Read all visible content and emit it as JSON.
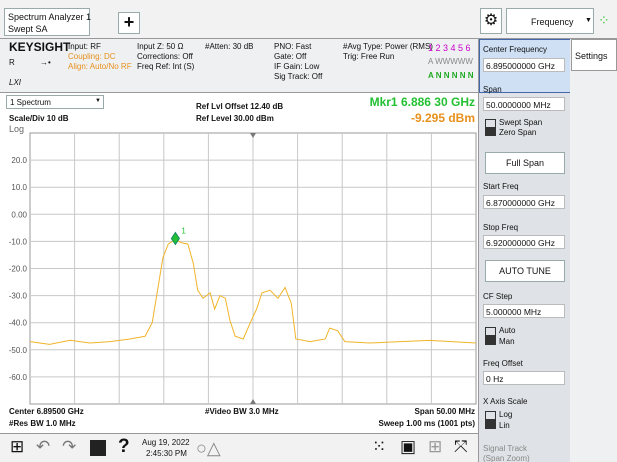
{
  "title_bar": {
    "app": "Spectrum Analyzer 1",
    "mode": "Swept SA",
    "menu": "Frequency"
  },
  "status": {
    "brand": "KEYSIGHT",
    "r": "R",
    "lxi": "LXI",
    "input": "Input: RF",
    "coupling": "Coupling: DC",
    "align": "Align: Auto/No RF",
    "input_z": "Input Z: 50 Ω",
    "corrections": "Corrections: Off",
    "freq_ref": "Freq Ref: Int (S)",
    "atten": "#Atten: 30 dB",
    "pno": "PNO: Fast",
    "gate": "Gate: Off",
    "if_gain": "IF Gain: Low",
    "sig_track": "Sig Track: Off",
    "avg_type": "#Avg Type: Power (RMS)",
    "trig": "Trig: Free Run",
    "traces": "1 2 3 4 5 6",
    "trace_type": "A WWWWW",
    "trace_det": "A N N N N N"
  },
  "plot": {
    "window": "1 Spectrum",
    "scale": "Scale/Div 10 dB",
    "log": "Log",
    "ref_offset": "Ref Lvl Offset 12.40 dB",
    "ref_level": "Ref Level 30.00 dBm",
    "marker_freq": "Mkr1  6.886 30 GHz",
    "marker_amp": "-9.295 dBm",
    "center": "Center 6.89500 GHz",
    "rbw": "#Res BW 1.0 MHz",
    "vbw": "#Video BW 3.0 MHz",
    "span": "Span 50.00 MHz",
    "sweep": "Sweep 1.00 ms (1001 pts)"
  },
  "chart_data": {
    "type": "line",
    "x": [
      6.87,
      6.8722,
      6.8745,
      6.8767,
      6.879,
      6.8812,
      6.8829,
      6.8837,
      6.8843,
      6.8849,
      6.8855,
      6.8863,
      6.887,
      6.8877,
      6.8883,
      6.8888,
      6.8894,
      6.8902,
      6.8907,
      6.8913,
      6.8919,
      6.8924,
      6.893,
      6.8939,
      6.8947,
      6.8954,
      6.896,
      6.8969,
      6.8978,
      6.8986,
      6.8993,
      6.8998,
      6.9014,
      6.9031,
      6.9036,
      6.9045,
      6.9053,
      6.9081,
      6.9115,
      6.9148,
      6.92
    ],
    "series": [
      {
        "color": "#f0b429",
        "values": [
          -47,
          -48,
          -46.5,
          -47.5,
          -47,
          -46,
          -45,
          -40,
          -28,
          -16,
          -11,
          -9.3,
          -10.5,
          -11,
          -18,
          -28,
          -31,
          -29,
          -35,
          -30,
          -31,
          -39,
          -45,
          -46,
          -40,
          -35,
          -29,
          -28,
          -31,
          -27,
          -33,
          -46,
          -47,
          -46,
          -42,
          -43,
          -47,
          -47.5,
          -47,
          -46.5,
          -47.5
        ]
      }
    ],
    "xlim": [
      6.87,
      6.92
    ],
    "ylim": [
      -70,
      30
    ],
    "yticks": [
      {
        "value": 20,
        "label": "20.0"
      },
      {
        "value": 10,
        "label": "10.0"
      },
      {
        "value": 0,
        "label": "0.00"
      },
      {
        "value": -10,
        "label": "-10.0"
      },
      {
        "value": -20,
        "label": "-20.0"
      },
      {
        "value": -30,
        "label": "-30.0"
      },
      {
        "value": -40,
        "label": "-40.0"
      },
      {
        "value": -50,
        "label": "-50.0"
      },
      {
        "value": -60,
        "label": "-60.0"
      }
    ],
    "grid": true,
    "marker": {
      "label": "1",
      "x": 6.8863,
      "y": -9.295,
      "color": "#22c032"
    }
  },
  "panel": {
    "tab": "Settings",
    "center_freq": "Center Frequency",
    "center_val": "6.895000000 GHz",
    "span": "Span",
    "span_val": "50.0000000 MHz",
    "swept_span": "Swept Span",
    "zero_span": "Zero Span",
    "full_span": "Full Span",
    "start_freq": "Start Freq",
    "start_val": "6.870000000 GHz",
    "stop_freq": "Stop Freq",
    "stop_val": "6.920000000 GHz",
    "auto_tune": "AUTO TUNE",
    "cf_step": "CF Step",
    "cf_val": "5.000000 MHz",
    "auto": "Auto",
    "man": "Man",
    "freq_offset": "Freq Offset",
    "offset_val": "0 Hz",
    "x_axis_scale": "X Axis Scale",
    "log": "Log",
    "lin": "Lin",
    "signal_track": "Signal Track",
    "span_zoom": "(Span Zoom)"
  },
  "taskbar": {
    "date": "Aug 19, 2022",
    "time": "2:45:30 PM"
  }
}
